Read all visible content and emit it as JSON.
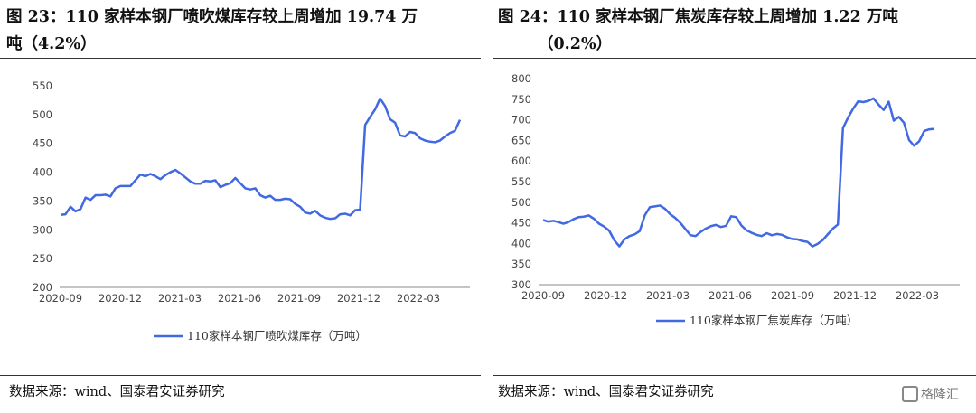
{
  "panels": [
    {
      "title_line1": "图 23：110 家样本钢厂喷吹煤库存较上周增加 19.74 万",
      "title_line2": "吨（4.2%）",
      "source": "数据来源：wind、国泰君安证券研究"
    },
    {
      "title_line1": "图 24：110 家样本钢厂焦炭库存较上周增加 1.22 万吨",
      "title_line2": "（0.2%）",
      "source": "数据来源：wind、国泰君安证券研究"
    }
  ],
  "watermark": "格隆汇",
  "colors": {
    "line": "#4169e1",
    "axis": "#888888",
    "rule": "#333333"
  },
  "chart_data": [
    {
      "type": "line",
      "title": "",
      "xlabel": "",
      "ylabel": "",
      "ylim": [
        200,
        550
      ],
      "yticks": [
        200,
        250,
        300,
        350,
        400,
        450,
        500,
        550
      ],
      "xtick_labels": [
        "2020-09",
        "2020-12",
        "2021-03",
        "2021-06",
        "2021-09",
        "2021-12",
        "2022-03"
      ],
      "legend": "top-free-bottom",
      "series": [
        {
          "name": "110家样本钢厂喷吹煤库存（万吨）",
          "values": [
            326,
            327,
            340,
            332,
            336,
            356,
            352,
            360,
            360,
            361,
            358,
            372,
            376,
            376,
            376,
            386,
            396,
            393,
            397,
            393,
            388,
            395,
            400,
            404,
            398,
            391,
            384,
            380,
            380,
            385,
            384,
            386,
            374,
            378,
            381,
            390,
            381,
            372,
            370,
            372,
            360,
            356,
            359,
            352,
            352,
            354,
            353,
            345,
            340,
            330,
            328,
            333,
            325,
            321,
            319,
            320,
            327,
            328,
            325,
            334,
            335,
            482,
            496,
            509,
            528,
            515,
            492,
            486,
            464,
            462,
            470,
            468,
            459,
            455,
            453,
            452,
            455,
            462,
            468,
            472,
            491
          ]
        }
      ]
    },
    {
      "type": "line",
      "title": "",
      "xlabel": "",
      "ylabel": "",
      "ylim": [
        300,
        800
      ],
      "yticks": [
        300,
        350,
        400,
        450,
        500,
        550,
        600,
        650,
        700,
        750,
        800
      ],
      "xtick_labels": [
        "2020-09",
        "2020-12",
        "2021-03",
        "2021-06",
        "2021-09",
        "2021-12",
        "2022-03"
      ],
      "legend": "bottom-center",
      "series": [
        {
          "name": "110家样本钢厂焦炭库存（万吨）",
          "values": [
            457,
            453,
            455,
            452,
            448,
            452,
            459,
            464,
            465,
            468,
            460,
            448,
            441,
            431,
            408,
            393,
            410,
            418,
            422,
            430,
            468,
            488,
            490,
            492,
            484,
            471,
            462,
            450,
            435,
            420,
            418,
            428,
            436,
            442,
            445,
            440,
            443,
            466,
            464,
            444,
            432,
            426,
            421,
            418,
            425,
            420,
            423,
            421,
            415,
            411,
            410,
            406,
            404,
            393,
            399,
            408,
            422,
            436,
            446,
            680,
            705,
            727,
            745,
            743,
            746,
            752,
            737,
            724,
            744,
            698,
            707,
            693,
            651,
            637,
            648,
            673,
            677,
            678
          ]
        }
      ]
    }
  ]
}
